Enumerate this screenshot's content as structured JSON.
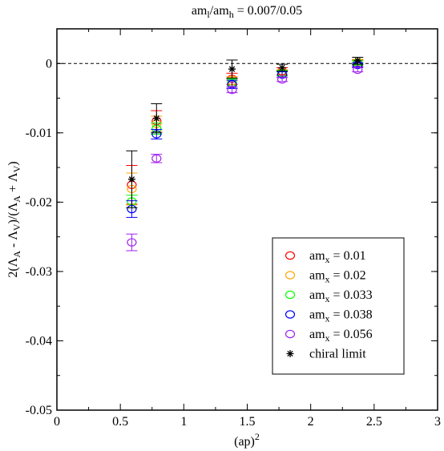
{
  "chart_data": {
    "type": "scatter",
    "title": "am_l/am_h = 0.007/0.05",
    "xlabel": "(ap)^2",
    "ylabel": "2(Λ_A - Λ_V)/(Λ_A + Λ_V)",
    "xlim": [
      0,
      3
    ],
    "ylim": [
      -0.05,
      0.005
    ],
    "xticks": [
      "0",
      "0.5",
      "1",
      "1.5",
      "2",
      "2.5",
      "3"
    ],
    "xtick_values": [
      0,
      0.5,
      1,
      1.5,
      2,
      2.5,
      3
    ],
    "yticks": [
      "0",
      "-0.01",
      "-0.02",
      "-0.03",
      "-0.04",
      "-0.05"
    ],
    "ytick_values": [
      0,
      -0.01,
      -0.02,
      -0.03,
      -0.04,
      -0.05
    ],
    "reference_line": {
      "y": 0,
      "style": "dashed"
    },
    "legend_position": "bottom-right",
    "grid": false,
    "series": [
      {
        "name": "am_x = 0.01",
        "color": "#ff0000",
        "marker": "circle",
        "points": [
          {
            "x": 0.59,
            "y": -0.0175,
            "err": 0.0028
          },
          {
            "x": 0.785,
            "y": -0.0083,
            "err": 0.0015
          },
          {
            "x": 1.38,
            "y": -0.0022,
            "err": 0.0008
          },
          {
            "x": 1.775,
            "y": -0.0011,
            "err": 0.0005
          },
          {
            "x": 2.37,
            "y": 0.0001,
            "err": 0.0004
          }
        ]
      },
      {
        "name": "am_x = 0.02",
        "color": "#ffa500",
        "marker": "circle",
        "points": [
          {
            "x": 0.59,
            "y": -0.0181,
            "err": 0.0023
          },
          {
            "x": 0.785,
            "y": -0.0087,
            "err": 0.0011
          },
          {
            "x": 1.38,
            "y": -0.0025,
            "err": 0.0006
          },
          {
            "x": 1.775,
            "y": -0.0013,
            "err": 0.0004
          },
          {
            "x": 2.37,
            "y": 0.0002,
            "err": 0.0004
          }
        ]
      },
      {
        "name": "am_x = 0.033",
        "color": "#00ff00",
        "marker": "circle",
        "points": [
          {
            "x": 0.59,
            "y": -0.0199,
            "err": 0.0009
          },
          {
            "x": 0.785,
            "y": -0.0094,
            "err": 0.0008
          },
          {
            "x": 1.38,
            "y": -0.0028,
            "err": 0.0006
          },
          {
            "x": 1.775,
            "y": -0.0014,
            "err": 0.0004
          },
          {
            "x": 2.37,
            "y": 0.0001,
            "err": 0.0003
          }
        ]
      },
      {
        "name": "am_x = 0.038",
        "color": "#0000ff",
        "marker": "circle",
        "points": [
          {
            "x": 0.59,
            "y": -0.021,
            "err": 0.0012
          },
          {
            "x": 0.785,
            "y": -0.0102,
            "err": 0.0007
          },
          {
            "x": 1.38,
            "y": -0.003,
            "err": 0.0006
          },
          {
            "x": 1.775,
            "y": -0.0016,
            "err": 0.0004
          },
          {
            "x": 2.37,
            "y": -0.0002,
            "err": 0.0003
          }
        ]
      },
      {
        "name": "am_x = 0.056",
        "color": "#a020f0",
        "marker": "circle",
        "points": [
          {
            "x": 0.59,
            "y": -0.0258,
            "err": 0.0012
          },
          {
            "x": 0.785,
            "y": -0.0137,
            "err": 0.0006
          },
          {
            "x": 1.38,
            "y": -0.0038,
            "err": 0.0004
          },
          {
            "x": 1.775,
            "y": -0.0023,
            "err": 0.0003
          },
          {
            "x": 2.37,
            "y": -0.0009,
            "err": 0.0003
          }
        ]
      },
      {
        "name": "chiral limit",
        "color": "#000000",
        "marker": "star",
        "points": [
          {
            "x": 0.59,
            "y": -0.0167,
            "err": 0.0041
          },
          {
            "x": 0.785,
            "y": -0.0079,
            "err": 0.0021
          },
          {
            "x": 1.38,
            "y": -0.0008,
            "err": 0.0013
          },
          {
            "x": 1.775,
            "y": -0.0006,
            "err": 0.0005
          },
          {
            "x": 2.37,
            "y": 0.0004,
            "err": 0.0005
          }
        ]
      }
    ]
  }
}
